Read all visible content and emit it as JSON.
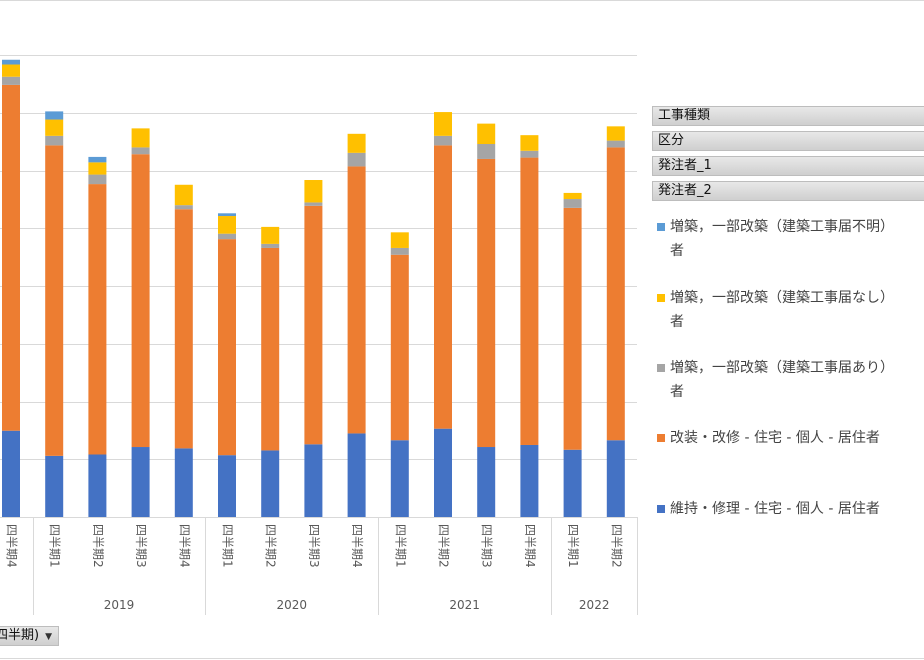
{
  "pivot_fields": {
    "field1": "工事種類",
    "field2": "区分",
    "field3": "発注者_1",
    "field4": "発注者_2"
  },
  "axis_dropdown_label": "四半期)",
  "colors": {
    "series1": "#4472C4",
    "series2": "#ED7D31",
    "series3": "#A5A5A5",
    "series4": "#FFC000",
    "series5": "#5B9BD5",
    "grid": "#d9d9d9"
  },
  "chart_data": {
    "type": "bar",
    "stacked": true,
    "grid": true,
    "legend_position": "right",
    "ylim": [
      0,
      680
    ],
    "categories": [
      "四半期4",
      "四半期1",
      "四半期2",
      "四半期3",
      "四半期4",
      "四半期1",
      "四半期2",
      "四半期3",
      "四半期4",
      "四半期1",
      "四半期2",
      "四半期3",
      "四半期4",
      "四半期1",
      "四半期2"
    ],
    "year_groups": [
      {
        "label": "",
        "count": 1
      },
      {
        "label": "2019",
        "count": 4
      },
      {
        "label": "2020",
        "count": 4
      },
      {
        "label": "2021",
        "count": 4
      },
      {
        "label": "2022",
        "count": 2
      }
    ],
    "series": [
      {
        "name": "維持・修理 - 住宅 - 個人 - 居住者",
        "values": [
          127,
          90,
          92,
          103,
          101,
          91,
          98,
          107,
          123,
          113,
          130,
          103,
          106,
          99,
          113
        ]
      },
      {
        "name": "改装・改修 - 住宅 - 個人 - 居住者",
        "values": [
          509,
          457,
          398,
          431,
          352,
          318,
          298,
          351,
          393,
          273,
          417,
          424,
          423,
          356,
          431
        ]
      },
      {
        "name": "増築，一部改築（建築工事届あり）者",
        "values": [
          12,
          14,
          14,
          10,
          6,
          8,
          6,
          5,
          20,
          10,
          14,
          22,
          10,
          13,
          10
        ]
      },
      {
        "name": "増築，一部改築（建築工事届なし）者",
        "values": [
          18,
          24,
          18,
          28,
          30,
          26,
          25,
          33,
          28,
          23,
          35,
          30,
          23,
          9,
          21
        ]
      },
      {
        "name": "増築，一部改築（建築工事届不明）者",
        "values": [
          7,
          12,
          8,
          0,
          0,
          4,
          0,
          0,
          0,
          0,
          0,
          0,
          0,
          0,
          0
        ]
      }
    ]
  },
  "legend_lines": [
    {
      "line1": "増築，一部改築（建築工事届不明）",
      "line2": "者"
    },
    {
      "line1": "増築，一部改築（建築工事届なし）",
      "line2": "者"
    },
    {
      "line1": "増築，一部改築（建築工事届あり）",
      "line2": "者"
    },
    {
      "line1": "改装・改修 - 住宅 - 個人 - 居住者",
      "line2": ""
    },
    {
      "line1": "維持・修理 - 住宅 - 個人 - 居住者",
      "line2": ""
    }
  ]
}
